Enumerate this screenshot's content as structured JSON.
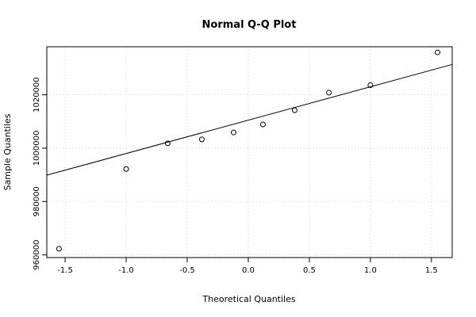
{
  "chart_data": {
    "type": "scatter",
    "title": "Normal Q-Q Plot",
    "xlabel": "Theoretical Quantiles",
    "ylabel": "Sample Quantiles",
    "xlim": [
      -1.65,
      1.67
    ],
    "ylim": [
      959000,
      1038000
    ],
    "x_ticks": [
      -1.5,
      -1.0,
      -0.5,
      0.0,
      0.5,
      1.0,
      1.5
    ],
    "x_tick_labels": [
      "-1.5",
      "-1.0",
      "-0.5",
      "0.0",
      "0.5",
      "1.0",
      "1.5"
    ],
    "y_ticks": [
      960000,
      980000,
      1000000,
      1020000
    ],
    "y_tick_labels": [
      "960000",
      "980000",
      "1000000",
      "1020000"
    ],
    "grid": true,
    "points": [
      {
        "x": -1.55,
        "y": 962300
      },
      {
        "x": -1.0,
        "y": 992200
      },
      {
        "x": -0.66,
        "y": 1001800
      },
      {
        "x": -0.38,
        "y": 1003300
      },
      {
        "x": -0.12,
        "y": 1005900
      },
      {
        "x": 0.12,
        "y": 1008900
      },
      {
        "x": 0.38,
        "y": 1014200
      },
      {
        "x": 0.66,
        "y": 1020800
      },
      {
        "x": 1.0,
        "y": 1023600
      },
      {
        "x": 1.55,
        "y": 1035900
      }
    ],
    "reference_line": {
      "intercept": 1010500,
      "slope": 12500
    }
  }
}
